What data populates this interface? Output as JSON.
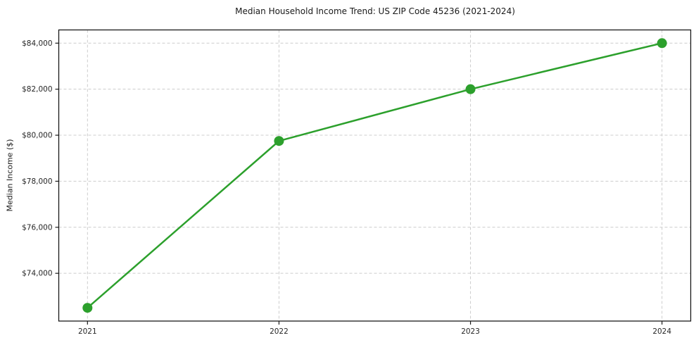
{
  "figure": {
    "title": "Median Household Income Trend: US ZIP Code 45236 (2021-2024)",
    "ylabel": "Median Income ($)"
  },
  "chart_data": {
    "type": "line",
    "title": "Median Household Income Trend: US ZIP Code 45236 (2021-2024)",
    "xlabel": "",
    "ylabel": "Median Income ($)",
    "x": [
      2021,
      2022,
      2023,
      2024
    ],
    "values": [
      72500,
      79750,
      82000,
      84000
    ],
    "xticks": [
      2021,
      2022,
      2023,
      2024
    ],
    "xtick_labels": [
      "2021",
      "2022",
      "2023",
      "2024"
    ],
    "yticks": [
      74000,
      76000,
      78000,
      80000,
      82000,
      84000
    ],
    "ytick_labels": [
      "$74,000",
      "$76,000",
      "$78,000",
      "$80,000",
      "$82,000",
      "$84,000"
    ],
    "xlim": [
      2020.85,
      2024.15
    ],
    "ylim": [
      71925,
      84575
    ],
    "grid": true,
    "grid_style": "dashed",
    "legend": "none",
    "marker": "circle",
    "colors": {
      "line": "#2ca02c",
      "marker": "#2ca02c",
      "grid": "#cccccc",
      "spine": "#1a1a1a",
      "tick_text": "#262626",
      "background": "#ffffff"
    }
  }
}
